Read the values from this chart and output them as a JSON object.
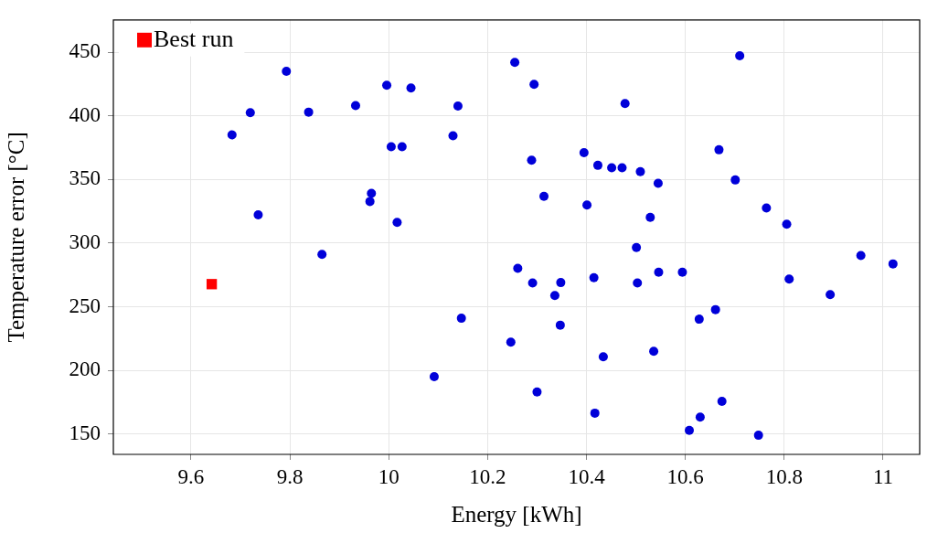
{
  "chart_data": {
    "type": "scatter",
    "xlabel": "Energy [kWh]",
    "ylabel": "Temperature error [°C]",
    "xlim": [
      9.443,
      11.074
    ],
    "ylim": [
      134.1,
      475.3
    ],
    "xticks": [
      9.6,
      9.8,
      10,
      10.2,
      10.4,
      10.6,
      10.8,
      11
    ],
    "yticks": [
      150,
      200,
      250,
      300,
      350,
      400,
      450
    ],
    "grid": true,
    "legend": "top left",
    "series": [
      {
        "color": "#0000d9",
        "marker": "circle",
        "x": [
          9.683,
          9.72,
          9.793,
          9.736,
          9.838,
          9.865,
          9.933,
          9.965,
          9.962,
          9.996,
          10.005,
          10.027,
          10.045,
          10.017,
          10.092,
          10.13,
          10.14,
          10.147,
          10.247,
          10.261,
          10.255,
          10.294,
          10.478,
          10.289,
          10.395,
          10.423,
          10.451,
          10.472,
          10.509,
          10.545,
          10.668,
          10.701,
          10.314,
          10.401,
          10.529,
          10.764,
          10.805,
          10.501,
          10.291,
          10.348,
          10.336,
          10.415,
          10.503,
          10.546,
          10.594,
          10.81,
          10.955,
          11.02,
          10.893,
          10.347,
          10.628,
          10.661,
          10.434,
          10.536,
          10.3,
          10.417,
          10.674,
          10.63,
          10.608,
          10.748,
          10.71
        ],
        "values": [
          385.0,
          402.4,
          435.0,
          322.2,
          402.9,
          291.2,
          408.0,
          339.1,
          332.7,
          424.0,
          375.7,
          375.7,
          421.9,
          316.3,
          195.1,
          384.3,
          407.6,
          241.0,
          222.3,
          280.2,
          442.0,
          424.7,
          409.7,
          365.1,
          371.0,
          361.1,
          359.2,
          359.2,
          356.2,
          347.0,
          373.3,
          349.6,
          336.7,
          329.9,
          320.3,
          327.6,
          314.9,
          296.6,
          268.7,
          269.0,
          258.9,
          272.9,
          268.7,
          277.2,
          277.2,
          271.8,
          290.3,
          283.7,
          259.6,
          235.6,
          240.3,
          247.8,
          210.8,
          215.0,
          183.1,
          166.5,
          175.8,
          163.4,
          152.9,
          149.1,
          447.2
        ]
      },
      {
        "name": "Best run",
        "color": "#ff0000",
        "marker": "square",
        "x": [
          9.642
        ],
        "values": [
          267.8
        ]
      }
    ]
  }
}
